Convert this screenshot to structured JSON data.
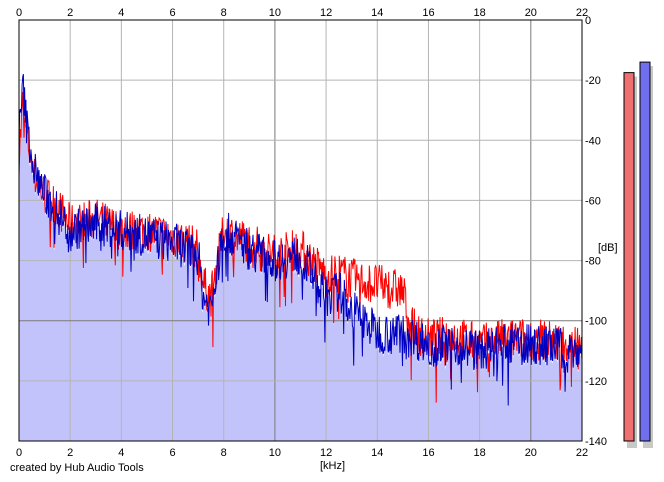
{
  "footer": {
    "credit": "created by Hub Audio Tools"
  },
  "chart_data": {
    "type": "line",
    "title": "",
    "xlabel": "[kHz]",
    "ylabel": "[dB]",
    "xlim": [
      0,
      22
    ],
    "ylim": [
      -140,
      0
    ],
    "x_ticks": [
      0,
      2,
      4,
      6,
      8,
      10,
      12,
      14,
      16,
      18,
      20,
      22
    ],
    "y_ticks": [
      0,
      -20,
      -40,
      -60,
      -80,
      -100,
      -120,
      -140
    ],
    "y_tick_labels": [
      "0",
      "-20",
      "-40",
      "-60",
      "-80",
      "-100",
      "-120",
      "-140"
    ],
    "grid": true,
    "background_fill_color": "#c3c3fb",
    "series": [
      {
        "color": "#ff0000",
        "x": [
          0,
          0.15,
          0.3,
          0.6,
          1,
          1.5,
          2,
          3,
          4,
          5,
          6,
          7,
          7.2,
          7.5,
          8,
          9,
          10,
          11,
          12,
          12.5,
          13,
          14,
          15,
          15.2,
          15.5,
          16,
          17,
          18,
          19,
          20,
          21,
          22
        ],
        "values": [
          -45,
          -28,
          -38,
          -52,
          -58,
          -62,
          -68,
          -66,
          -70,
          -70,
          -72,
          -76,
          -88,
          -92,
          -70,
          -74,
          -78,
          -76,
          -85,
          -84,
          -86,
          -88,
          -90,
          -98,
          -104,
          -106,
          -105,
          -108,
          -106,
          -106,
          -107,
          -108
        ]
      },
      {
        "color": "#0000c0",
        "x": [
          0,
          0.15,
          0.3,
          0.6,
          1,
          1.5,
          2,
          3,
          4,
          5,
          6,
          7,
          7.2,
          7.5,
          8,
          9,
          10,
          11,
          12,
          12.5,
          13,
          14,
          15,
          15.2,
          15.5,
          16,
          17,
          18,
          19,
          20,
          21,
          22
        ],
        "values": [
          -40,
          -22,
          -35,
          -50,
          -58,
          -64,
          -70,
          -68,
          -70,
          -72,
          -74,
          -78,
          -92,
          -96,
          -70,
          -76,
          -80,
          -78,
          -92,
          -90,
          -96,
          -104,
          -104,
          -104,
          -106,
          -108,
          -108,
          -110,
          -108,
          -108,
          -109,
          -110
        ]
      }
    ],
    "level_meters": [
      {
        "channel": "left",
        "color": "#ee7070",
        "value_db": -17.5
      },
      {
        "channel": "right",
        "color": "#7070ee",
        "value_db": -14
      }
    ]
  }
}
